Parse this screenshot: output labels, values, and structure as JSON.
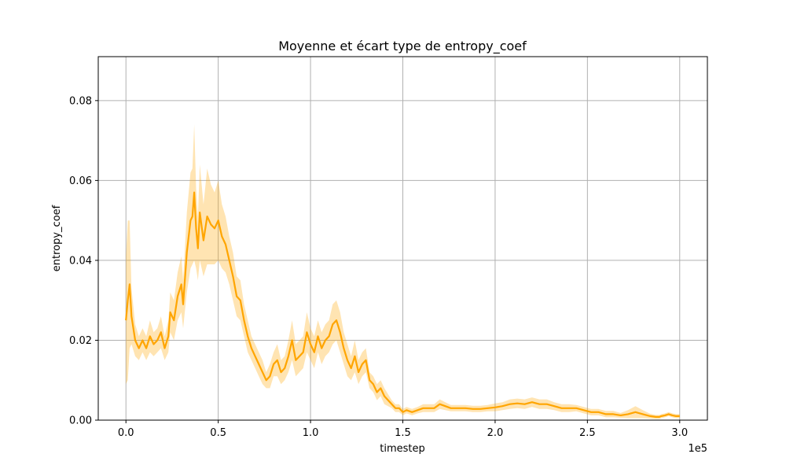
{
  "chart_data": {
    "type": "line",
    "title": "Moyenne et écart type de entropy_coef",
    "xlabel": "timestep",
    "ylabel": "entropy_coef",
    "x_offset_text": "1e5",
    "xlim": [
      -0.15,
      3.15
    ],
    "ylim": [
      0.0,
      0.091
    ],
    "x_ticks": [
      0.0,
      0.5,
      1.0,
      1.5,
      2.0,
      2.5,
      3.0
    ],
    "x_tick_labels": [
      "0.0",
      "0.5",
      "1.0",
      "1.5",
      "2.0",
      "2.5",
      "3.0"
    ],
    "y_ticks": [
      0.0,
      0.02,
      0.04,
      0.06,
      0.08
    ],
    "y_tick_labels": [
      "0.00",
      "0.02",
      "0.04",
      "0.06",
      "0.08"
    ],
    "grid": true,
    "colors": {
      "line": "#FFA500",
      "band": "#FFA500",
      "band_opacity": 0.3,
      "grid": "#b0b0b0"
    },
    "series": [
      {
        "x": [
          0.0,
          0.01,
          0.02,
          0.03,
          0.05,
          0.07,
          0.09,
          0.11,
          0.13,
          0.15,
          0.17,
          0.19,
          0.21,
          0.23,
          0.24,
          0.26,
          0.28,
          0.3,
          0.31,
          0.33,
          0.35,
          0.36,
          0.37,
          0.38,
          0.39,
          0.4,
          0.42,
          0.44,
          0.46,
          0.48,
          0.5,
          0.52,
          0.54,
          0.56,
          0.58,
          0.6,
          0.62,
          0.64,
          0.66,
          0.68,
          0.7,
          0.72,
          0.74,
          0.76,
          0.78,
          0.8,
          0.82,
          0.84,
          0.86,
          0.88,
          0.9,
          0.92,
          0.94,
          0.96,
          0.98,
          1.0,
          1.02,
          1.04,
          1.06,
          1.08,
          1.1,
          1.12,
          1.14,
          1.16,
          1.18,
          1.2,
          1.22,
          1.24,
          1.26,
          1.28,
          1.3,
          1.32,
          1.34,
          1.36,
          1.38,
          1.4,
          1.42,
          1.44,
          1.46,
          1.48,
          1.5,
          1.52,
          1.55,
          1.58,
          1.61,
          1.64,
          1.67,
          1.7,
          1.73,
          1.76,
          1.8,
          1.84,
          1.88,
          1.92,
          1.96,
          2.0,
          2.04,
          2.08,
          2.12,
          2.16,
          2.2,
          2.24,
          2.28,
          2.32,
          2.36,
          2.4,
          2.44,
          2.48,
          2.52,
          2.56,
          2.6,
          2.64,
          2.68,
          2.72,
          2.76,
          2.8,
          2.84,
          2.87,
          2.89,
          2.9,
          2.92,
          2.94,
          2.96,
          2.98,
          3.0
        ],
        "mean": [
          0.025,
          0.03,
          0.034,
          0.026,
          0.02,
          0.018,
          0.02,
          0.018,
          0.021,
          0.019,
          0.02,
          0.022,
          0.018,
          0.021,
          0.027,
          0.025,
          0.031,
          0.034,
          0.029,
          0.042,
          0.05,
          0.051,
          0.057,
          0.048,
          0.043,
          0.052,
          0.045,
          0.051,
          0.049,
          0.048,
          0.05,
          0.046,
          0.044,
          0.04,
          0.036,
          0.031,
          0.03,
          0.025,
          0.021,
          0.018,
          0.016,
          0.014,
          0.012,
          0.01,
          0.011,
          0.014,
          0.015,
          0.012,
          0.013,
          0.016,
          0.02,
          0.015,
          0.016,
          0.017,
          0.022,
          0.019,
          0.017,
          0.021,
          0.018,
          0.02,
          0.021,
          0.024,
          0.025,
          0.022,
          0.018,
          0.015,
          0.013,
          0.016,
          0.012,
          0.014,
          0.015,
          0.01,
          0.009,
          0.007,
          0.008,
          0.006,
          0.005,
          0.004,
          0.003,
          0.003,
          0.002,
          0.0025,
          0.002,
          0.0025,
          0.003,
          0.003,
          0.003,
          0.004,
          0.0035,
          0.003,
          0.003,
          0.003,
          0.0028,
          0.0028,
          0.003,
          0.0032,
          0.0035,
          0.004,
          0.0042,
          0.004,
          0.0045,
          0.004,
          0.004,
          0.0035,
          0.003,
          0.003,
          0.003,
          0.0025,
          0.002,
          0.002,
          0.0015,
          0.0015,
          0.0012,
          0.0015,
          0.002,
          0.0015,
          0.001,
          0.0008,
          0.0008,
          0.001,
          0.0012,
          0.0015,
          0.0012,
          0.001,
          0.001
        ],
        "std": [
          0.016,
          0.02,
          0.016,
          0.007,
          0.004,
          0.003,
          0.003,
          0.003,
          0.004,
          0.003,
          0.003,
          0.004,
          0.003,
          0.004,
          0.005,
          0.005,
          0.006,
          0.007,
          0.006,
          0.01,
          0.012,
          0.012,
          0.017,
          0.01,
          0.008,
          0.012,
          0.009,
          0.012,
          0.01,
          0.009,
          0.01,
          0.008,
          0.007,
          0.006,
          0.006,
          0.005,
          0.005,
          0.004,
          0.004,
          0.003,
          0.003,
          0.003,
          0.003,
          0.002,
          0.003,
          0.003,
          0.004,
          0.003,
          0.003,
          0.004,
          0.005,
          0.004,
          0.004,
          0.004,
          0.005,
          0.004,
          0.004,
          0.004,
          0.004,
          0.004,
          0.004,
          0.005,
          0.005,
          0.005,
          0.004,
          0.004,
          0.003,
          0.004,
          0.003,
          0.003,
          0.003,
          0.002,
          0.002,
          0.002,
          0.002,
          0.002,
          0.0015,
          0.001,
          0.001,
          0.001,
          0.0008,
          0.0008,
          0.0008,
          0.0008,
          0.001,
          0.001,
          0.001,
          0.0012,
          0.001,
          0.0008,
          0.0008,
          0.0008,
          0.0008,
          0.0008,
          0.0008,
          0.001,
          0.001,
          0.0012,
          0.0012,
          0.0012,
          0.0012,
          0.0012,
          0.0012,
          0.001,
          0.001,
          0.001,
          0.0008,
          0.0008,
          0.0008,
          0.0008,
          0.0008,
          0.0008,
          0.0006,
          0.001,
          0.0015,
          0.001,
          0.0006,
          0.0005,
          0.0005,
          0.0005,
          0.0005,
          0.0005,
          0.0005,
          0.0005,
          0.0005
        ]
      }
    ]
  }
}
